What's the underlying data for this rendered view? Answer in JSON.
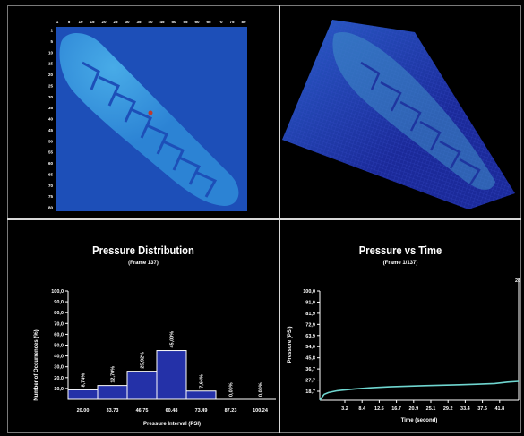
{
  "heatmap_2d": {
    "x_ticks": [
      "1",
      "5",
      "10",
      "15",
      "20",
      "25",
      "30",
      "35",
      "40",
      "45",
      "50",
      "55",
      "60",
      "65",
      "70",
      "75",
      "80"
    ],
    "y_ticks": [
      "1",
      "5",
      "10",
      "15",
      "20",
      "25",
      "30",
      "35",
      "40",
      "45",
      "50",
      "55",
      "60",
      "65",
      "70",
      "75",
      "80"
    ],
    "colors": {
      "low": "#1d4fb8",
      "mid": "#2d86d6",
      "high": "#4ab0ea",
      "peak": "#c0392b"
    }
  },
  "surface_3d": {
    "colors": {
      "base": "#1b2a9a",
      "mid": "#2a5fc8",
      "high": "#3fa0c8"
    }
  },
  "pressure_distribution": {
    "title": "Pressure Distribution",
    "subtitle": "(Frame 137)",
    "chart_data": {
      "type": "bar",
      "title": "Pressure Distribution",
      "xlabel": "Pressure Interval (PSI)",
      "ylabel": "Number of Occurrences (%)",
      "ylim": [
        0,
        100
      ],
      "yticks": [
        "100,0",
        "90,0",
        "80,0",
        "70,0",
        "60,0",
        "50,0",
        "40,0",
        "30,0",
        "20,0",
        "10,0"
      ],
      "categories": [
        "20.00",
        "33.73",
        "46.75",
        "60.48",
        "73.49",
        "87.23",
        "100.24"
      ],
      "values": [
        8.74,
        12.7,
        25.92,
        45.0,
        7.64,
        0.0,
        0.0
      ],
      "value_labels": [
        "8,74%",
        "12,70%",
        "25,92%",
        "45,00%",
        "7,64%",
        "0,00%",
        "0,00%"
      ],
      "bar_color": "#2431a8"
    }
  },
  "pressure_time": {
    "title": "Pressure vs Time",
    "subtitle": "(Frame 1/137)",
    "chart_data": {
      "type": "line",
      "title": "Pressure vs Time",
      "xlabel": "Time (second)",
      "ylabel": "Pressure (PSI)",
      "yticks": [
        "100,0",
        "91,0",
        "81,9",
        "72,9",
        "63,9",
        "54,0",
        "45,8",
        "36,7",
        "27,7",
        "18,7"
      ],
      "xticks": [
        "3.2",
        "8.4",
        "12.5",
        "16.7",
        "20.9",
        "25.1",
        "29.2",
        "33.4",
        "37.6",
        "41.8"
      ],
      "x": [
        0,
        1,
        2,
        4,
        8,
        12,
        16,
        20,
        24,
        28,
        32,
        36,
        40,
        43,
        45.5
      ],
      "y": [
        8,
        13,
        14.5,
        16,
        17.5,
        18.5,
        19.2,
        19.8,
        20.2,
        20.6,
        21,
        21.4,
        22,
        23.2,
        23.8
      ],
      "xlim": [
        0,
        45.5
      ],
      "ylim": [
        8,
        100
      ],
      "line_color": "#6fd6d0",
      "edge_label": "28"
    }
  }
}
